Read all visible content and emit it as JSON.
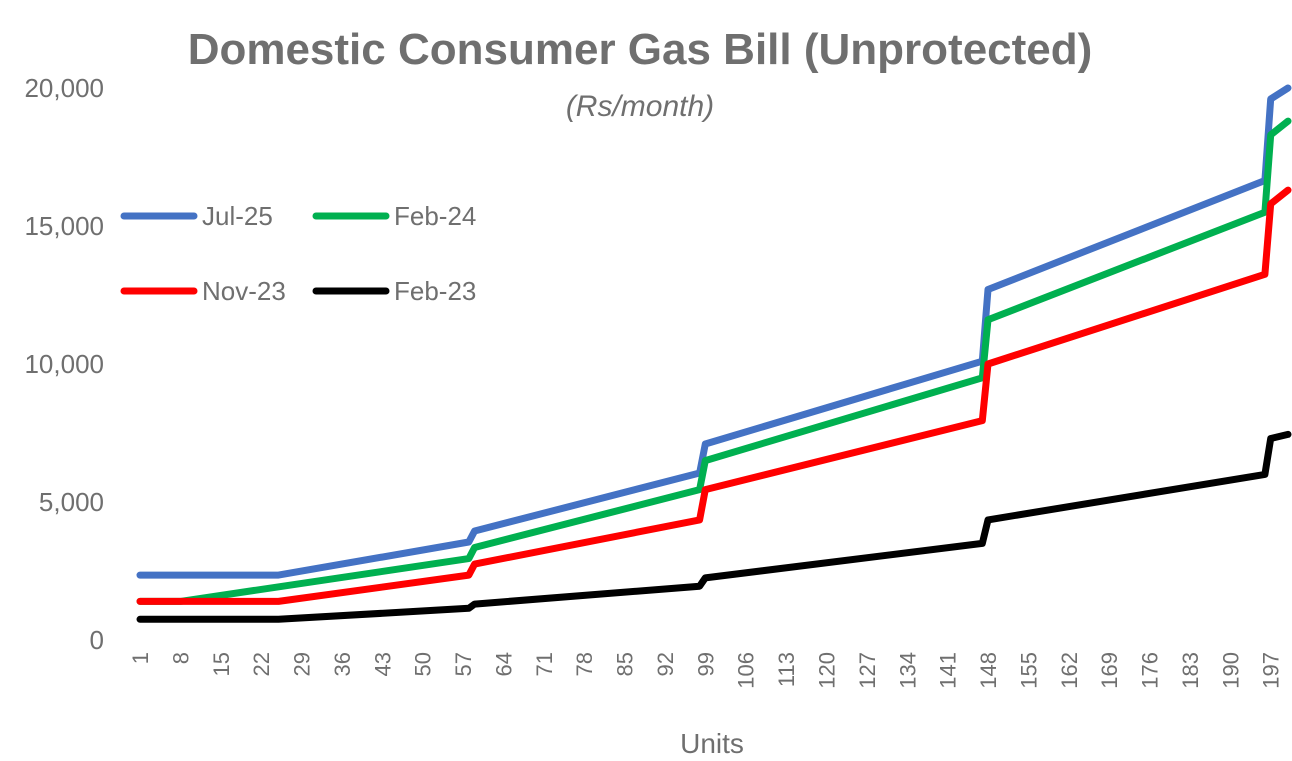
{
  "chart_data": {
    "type": "line",
    "title": "Domestic Consumer Gas Bill (Unprotected)",
    "subtitle": "(Rs/month)",
    "xlabel": "Units",
    "ylabel": "",
    "xlim": [
      1,
      200
    ],
    "ylim": [
      0,
      20000
    ],
    "y_ticks": [
      0,
      5000,
      10000,
      15000,
      20000
    ],
    "y_tick_labels": [
      "0",
      "5,000",
      "10,000",
      "15,000",
      "20,000"
    ],
    "x_tick_labels": [
      "1",
      "8",
      "15",
      "22",
      "29",
      "36",
      "43",
      "50",
      "57",
      "64",
      "71",
      "78",
      "85",
      "92",
      "99",
      "106",
      "113",
      "120",
      "127",
      "134",
      "141",
      "148",
      "155",
      "162",
      "169",
      "176",
      "183",
      "190",
      "197"
    ],
    "grid": false,
    "legend": {
      "placement": "upper-left",
      "rows": [
        [
          "Jul-25",
          "Feb-24"
        ],
        [
          "Nov-23",
          "Feb-23"
        ]
      ]
    },
    "series": [
      {
        "name": "Jul-25",
        "color": "#4472c4",
        "points": [
          [
            1,
            2350
          ],
          [
            25,
            2350
          ],
          [
            58,
            3550
          ],
          [
            59,
            3950
          ],
          [
            98,
            6050
          ],
          [
            99,
            7100
          ],
          [
            147,
            10100
          ],
          [
            148,
            12700
          ],
          [
            196,
            16650
          ],
          [
            197,
            19600
          ],
          [
            200,
            20000
          ]
        ]
      },
      {
        "name": "Feb-24",
        "color": "#00b050",
        "points": [
          [
            1,
            1400
          ],
          [
            8,
            1400
          ],
          [
            58,
            2950
          ],
          [
            59,
            3350
          ],
          [
            98,
            5450
          ],
          [
            99,
            6500
          ],
          [
            147,
            9500
          ],
          [
            148,
            11600
          ],
          [
            196,
            15500
          ],
          [
            197,
            18300
          ],
          [
            200,
            18800
          ]
        ]
      },
      {
        "name": "Nov-23",
        "color": "#ff0000",
        "points": [
          [
            1,
            1400
          ],
          [
            25,
            1400
          ],
          [
            58,
            2350
          ],
          [
            59,
            2750
          ],
          [
            98,
            4350
          ],
          [
            99,
            5450
          ],
          [
            147,
            7950
          ],
          [
            148,
            10000
          ],
          [
            196,
            13250
          ],
          [
            197,
            15800
          ],
          [
            200,
            16300
          ]
        ]
      },
      {
        "name": "Feb-23",
        "color": "#000000",
        "points": [
          [
            1,
            750
          ],
          [
            25,
            750
          ],
          [
            58,
            1150
          ],
          [
            59,
            1300
          ],
          [
            98,
            1950
          ],
          [
            99,
            2250
          ],
          [
            147,
            3500
          ],
          [
            148,
            4350
          ],
          [
            196,
            6000
          ],
          [
            197,
            7300
          ],
          [
            200,
            7450
          ]
        ]
      }
    ]
  }
}
